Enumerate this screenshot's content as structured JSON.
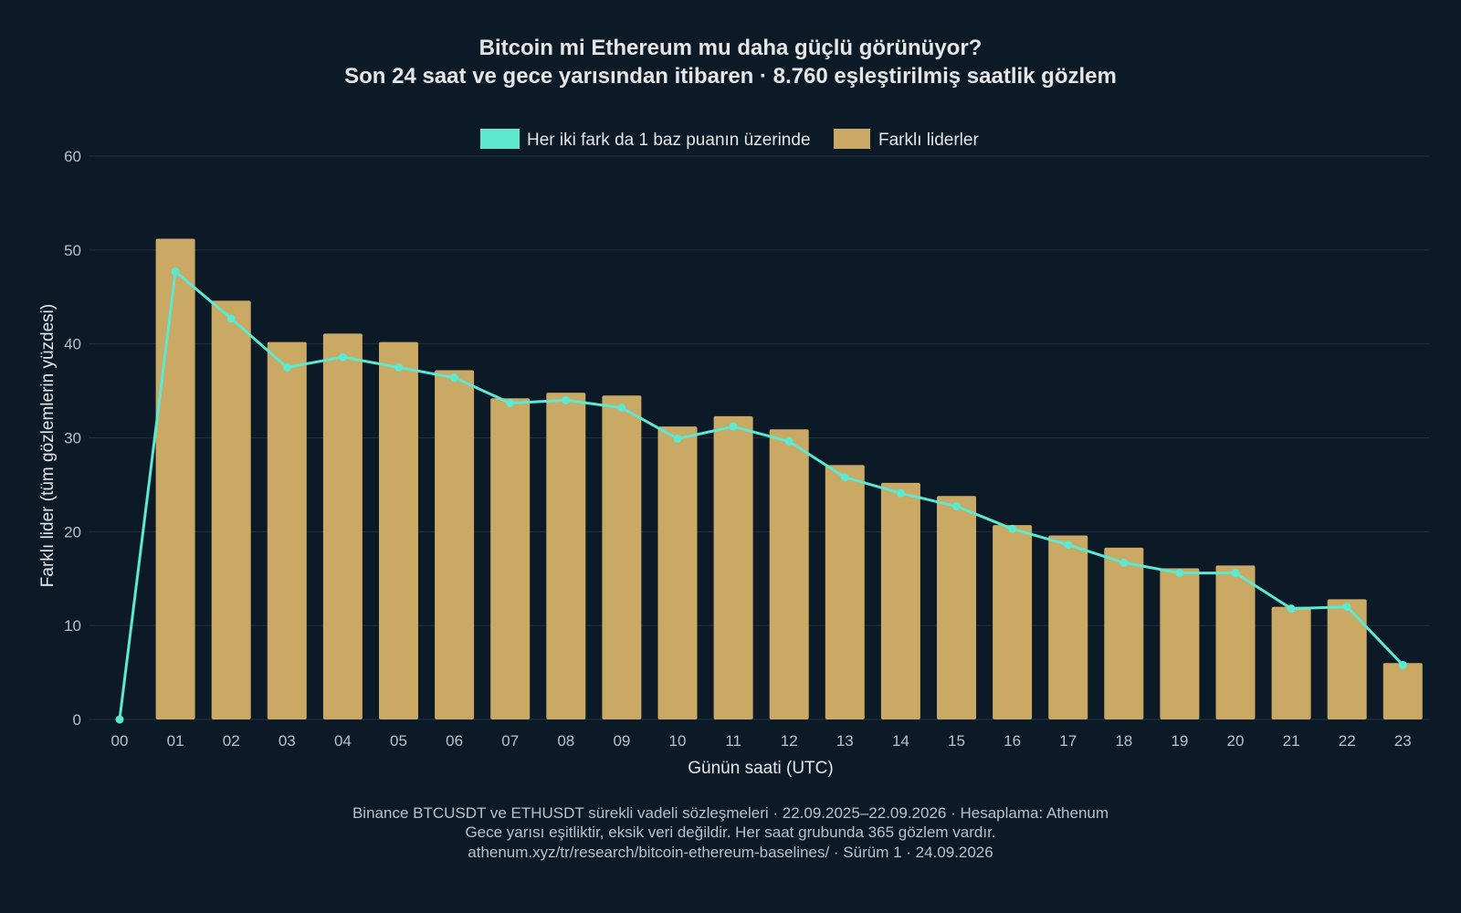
{
  "chart_data": {
    "type": "bar",
    "title": "Bitcoin mi Ethereum mu daha güçlü görünüyor?",
    "subtitle": "Son 24 saat ve gece yarısından itibaren · 8.760 eşleştirilmiş saatlik gözlem",
    "xlabel": "Günün saati (UTC)",
    "ylabel": "Farklı lider (tüm gözlemlerin yüzdesi)",
    "ylim": [
      0,
      60
    ],
    "yticks": [
      "0",
      "10",
      "20",
      "30",
      "40",
      "50",
      "60"
    ],
    "grid": true,
    "legend_position": "top-center",
    "categories": [
      "00",
      "01",
      "02",
      "03",
      "04",
      "05",
      "06",
      "07",
      "08",
      "09",
      "10",
      "11",
      "12",
      "13",
      "14",
      "15",
      "16",
      "17",
      "18",
      "19",
      "20",
      "21",
      "22",
      "23"
    ],
    "series": [
      {
        "name": "Farklı liderler",
        "type": "bar",
        "color": "#c9a963",
        "values": [
          0,
          51.2,
          44.6,
          40.2,
          41.1,
          40.2,
          37.2,
          34.2,
          34.8,
          34.5,
          31.2,
          32.3,
          30.9,
          27.1,
          25.2,
          23.8,
          20.7,
          19.6,
          18.3,
          16.1,
          16.4,
          12.0,
          12.8,
          6.0
        ]
      },
      {
        "name": "Her iki fark da 1 baz puanın üzerinde",
        "type": "line",
        "color": "#5ce8d1",
        "values": [
          0,
          47.7,
          42.7,
          37.5,
          38.6,
          37.5,
          36.4,
          33.7,
          34.0,
          33.2,
          29.9,
          31.2,
          29.6,
          25.8,
          24.1,
          22.7,
          20.3,
          18.6,
          16.7,
          15.6,
          15.6,
          11.8,
          12.0,
          5.8
        ]
      }
    ]
  },
  "footer": {
    "line1": "Binance BTCUSDT ve ETHUSDT sürekli vadeli sözleşmeleri · 22.09.2025–22.09.2026 · Hesaplama: Athenum",
    "line2": "Gece yarısı eşitliktir, eksik veri değildir. Her saat grubunda 365 gözlem vardır.",
    "line3": "athenum.xyz/tr/research/bitcoin-ethereum-baselines/ · Sürüm 1 · 24.09.2026"
  }
}
